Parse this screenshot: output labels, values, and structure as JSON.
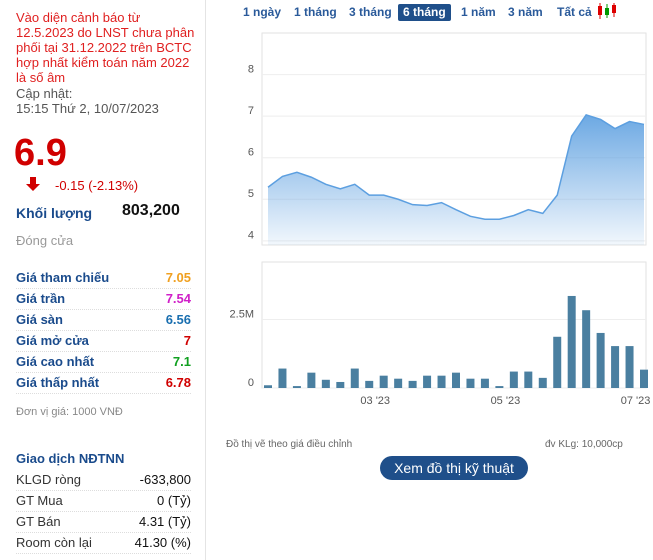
{
  "warning": "Vào diện cảnh báo từ 12.5.2023 do LNST chưa phân phối tại 31.12.2022 trên BCTC hợp nhất kiểm toán năm 2022 là số âm",
  "updated_label": "Cập nhật:",
  "updated_time": "15:15 Thứ 2, 10/07/2023",
  "price": 6.9,
  "change": "-0.15 (-2.13%)",
  "volume": {
    "label": "Khối lượng",
    "value": "803,200"
  },
  "closed": "Đóng cửa",
  "stats": [
    {
      "label": "Giá tham chiếu",
      "value": 7.05,
      "color": "#f0a020"
    },
    {
      "label": "Giá trần",
      "value": 7.54,
      "color": "#d020c8"
    },
    {
      "label": "Giá sàn",
      "value": 6.56,
      "color": "#1a6fb0"
    },
    {
      "label": "Giá mở cửa",
      "value": 7,
      "color": "#d00000"
    },
    {
      "label": "Giá cao nhất",
      "value": 7.1,
      "color": "#10a020"
    },
    {
      "label": "Giá thấp nhất",
      "value": 6.78,
      "color": "#d00000"
    }
  ],
  "unit_note": "Đơn vị giá: 1000 VNĐ",
  "foreign": {
    "title": "Giao dịch NĐTNN",
    "rows": [
      {
        "label": "KLGD ròng",
        "value": "-633,800"
      },
      {
        "label": "GT Mua",
        "value": "0 (Tỷ)"
      },
      {
        "label": "GT Bán",
        "value": "4.31 (Tỷ)"
      },
      {
        "label": "Room còn lại",
        "value": "41.30 (%)"
      }
    ]
  },
  "tabs": {
    "items": [
      "1 ngày",
      "1 tháng",
      "3 tháng",
      "6 tháng",
      "1 năm",
      "3 năm",
      "Tất cả"
    ],
    "active": 3
  },
  "chart_data": [
    {
      "type": "area",
      "color": "#5c9fe0",
      "categories": [
        null,
        null,
        null,
        null,
        null,
        null,
        null,
        "03 '23",
        null,
        null,
        null,
        null,
        null,
        null,
        null,
        null,
        "05 '23",
        null,
        null,
        null,
        null,
        null,
        null,
        null,
        null,
        "07 '23",
        null
      ],
      "values": [
        5.29,
        5.55,
        5.65,
        5.53,
        5.36,
        5.25,
        5.36,
        5.1,
        5.1,
        5.0,
        4.87,
        4.85,
        4.92,
        4.75,
        4.59,
        4.52,
        4.52,
        4.61,
        4.75,
        4.66,
        5.1,
        6.52,
        7.03,
        6.92,
        6.7,
        6.87,
        6.8
      ],
      "ylim": [
        3.9,
        9.0
      ],
      "yticks": [
        4,
        5,
        6,
        7,
        8
      ],
      "grid": true
    },
    {
      "type": "bar",
      "color": "#4a7fa0",
      "categories": [
        null,
        null,
        null,
        null,
        null,
        null,
        null,
        "03 '23",
        null,
        null,
        null,
        null,
        null,
        null,
        null,
        null,
        "05 '23",
        null,
        null,
        null,
        null,
        null,
        null,
        null,
        null,
        "07 '23",
        null
      ],
      "values": [
        100000,
        710000,
        70000,
        560000,
        300000,
        220000,
        710000,
        260000,
        450000,
        340000,
        260000,
        450000,
        450000,
        560000,
        340000,
        340000,
        70000,
        600000,
        600000,
        370000,
        1870000,
        3360000,
        2840000,
        2010000,
        1530000,
        1530000,
        670000
      ],
      "ylim": [
        0,
        4600000
      ],
      "yticks": [
        0,
        {
          "value": 2500000,
          "label": "2.5M"
        }
      ],
      "grid": true
    }
  ],
  "chart_note": "Đồ thị vẽ theo giá điều chỉnh",
  "volume_unit": "đv KLg: 10,000cp",
  "button": "Xem đồ thị kỹ thuật"
}
